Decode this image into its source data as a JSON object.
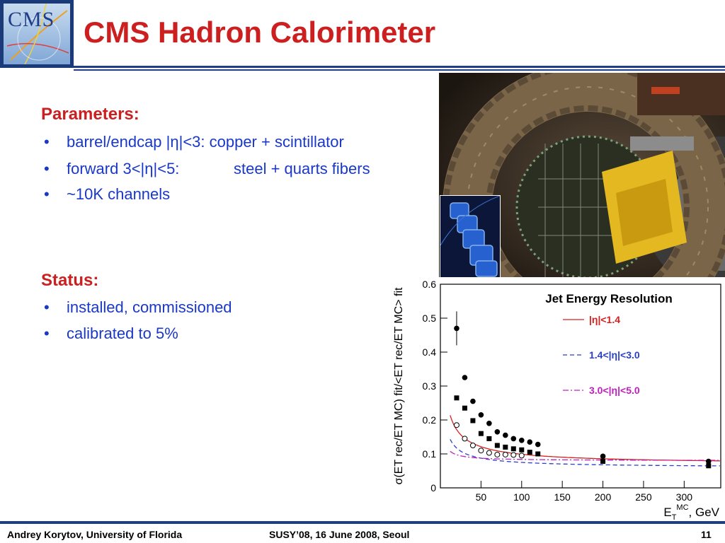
{
  "logo": {
    "text": "CMS"
  },
  "title": "CMS Hadron Calorimeter",
  "parameters": {
    "heading": "Parameters:",
    "items": [
      {
        "text": "barrel/endcap |η|<3: copper + scintillator",
        "col2": ""
      },
      {
        "text": "forward 3<|η|<5:",
        "col2": "steel + quarts fibers"
      },
      {
        "text": "~10K channels",
        "col2": ""
      }
    ]
  },
  "status": {
    "heading": "Status:",
    "items": [
      "installed, commissioned",
      "calibrated to 5%"
    ]
  },
  "chart_data": {
    "type": "scatter",
    "title": "Jet Energy Resolution",
    "xlabel": "E_T^MC, GeV",
    "ylabel": "σ(E_T^rec/E_T^MC)_fit/<E_T^rec/E_T^MC>_fit",
    "xlim": [
      0,
      345
    ],
    "ylim": [
      0,
      0.6
    ],
    "xticks": [
      "50",
      "100",
      "150",
      "200",
      "250",
      "300"
    ],
    "yticks": [
      "0",
      "0.1",
      "0.2",
      "0.3",
      "0.4",
      "0.5",
      "0.6"
    ],
    "legend_position": "top-right",
    "series": [
      {
        "name": "|η|<1.4",
        "color": "#d62020",
        "marker": "filled-circle",
        "x": [
          20,
          30,
          40,
          50,
          60,
          70,
          80,
          90,
          100,
          110,
          120,
          200,
          330
        ],
        "y": [
          0.47,
          0.325,
          0.255,
          0.215,
          0.19,
          0.165,
          0.155,
          0.145,
          0.14,
          0.135,
          0.128,
          0.093,
          0.078
        ]
      },
      {
        "name": "1.4<|η|<3.0",
        "color": "#2a3fc8",
        "marker": "filled-square",
        "x": [
          20,
          30,
          40,
          50,
          60,
          70,
          80,
          90,
          100,
          110,
          120,
          200,
          330
        ],
        "y": [
          0.265,
          0.235,
          0.198,
          0.16,
          0.145,
          0.125,
          0.12,
          0.115,
          0.112,
          0.105,
          0.1,
          0.078,
          0.065
        ]
      },
      {
        "name": "3.0<|η|<5.0",
        "color": "#c020c0",
        "marker": "open-circle",
        "x": [
          20,
          30,
          40,
          50,
          60,
          70,
          80,
          90,
          100
        ],
        "y": [
          0.185,
          0.145,
          0.125,
          0.11,
          0.103,
          0.098,
          0.098,
          0.097,
          0.095
        ]
      }
    ]
  },
  "footer": {
    "author": "Andrey Korytov, University of Florida",
    "event": "SUSY’08, 16 June 2008, Seoul",
    "page": "11"
  }
}
